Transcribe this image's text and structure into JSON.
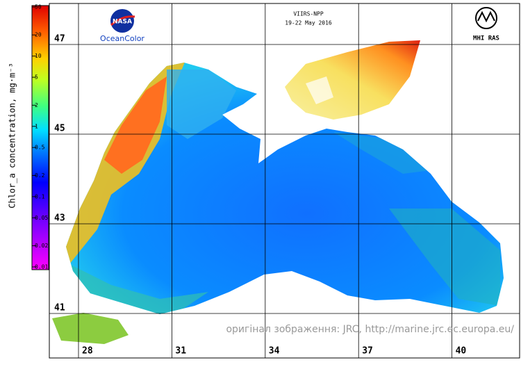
{
  "colorbar": {
    "label": "Chlor_a concentration, mg·m⁻³",
    "ticks": [
      50,
      20,
      10,
      5,
      2,
      1,
      0.5,
      0.2,
      0.1,
      0.05,
      0.02,
      0.01
    ]
  },
  "header": {
    "sensor": "VIIRS-NPP",
    "dates": "19-22 May 2016"
  },
  "logos": {
    "nasa": "NASA",
    "oceancolor": "OceanColor",
    "mhi": "MHI RAS"
  },
  "map": {
    "latitudes": [
      47,
      45,
      43,
      41
    ],
    "longitudes": [
      28,
      31,
      34,
      37,
      40
    ]
  },
  "credit": "оригінал зображення: JRC, http://marine.jrc.ec.europa.eu/"
}
